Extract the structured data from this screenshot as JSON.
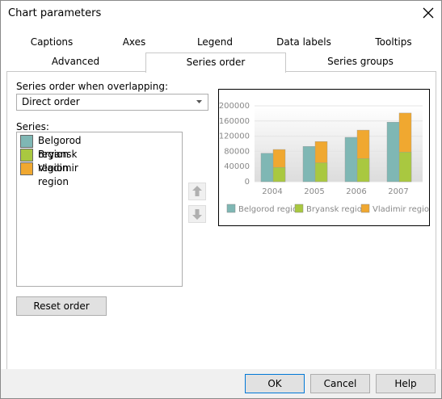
{
  "window": {
    "title": "Chart parameters"
  },
  "tabs": {
    "row1": [
      "Captions",
      "Axes",
      "Legend",
      "Data labels",
      "Tooltips"
    ],
    "row2": [
      "Advanced",
      "Series order",
      "Series groups"
    ]
  },
  "series_order": {
    "label": "Series order when overlapping:",
    "value": "Direct order"
  },
  "series_list": {
    "label": "Series:"
  },
  "buttons": {
    "reset": "Reset order",
    "ok": "OK",
    "cancel": "Cancel",
    "help": "Help"
  },
  "chart_data": {
    "type": "bar",
    "categories": [
      "2004",
      "2005",
      "2006",
      "2007"
    ],
    "series": [
      {
        "name": "Belgorod region",
        "color": "#7fb7b4",
        "values": [
          75000,
          93000,
          117000,
          157000
        ]
      },
      {
        "name": "Bryansk region",
        "color": "#a9c840",
        "values": [
          38000,
          50000,
          61000,
          78000
        ]
      },
      {
        "name": "Vladimir region",
        "color": "#f0a830",
        "values": [
          85000,
          106000,
          136000,
          181000
        ]
      }
    ],
    "ylim": [
      0,
      200000
    ],
    "yticks": [
      0,
      40000,
      80000,
      120000,
      160000,
      200000
    ],
    "grid": true
  }
}
